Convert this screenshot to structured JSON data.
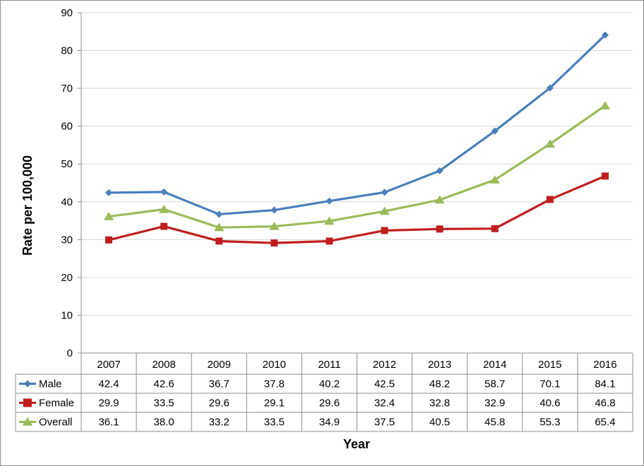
{
  "chart_data": {
    "type": "line",
    "title": "",
    "xlabel": "Year",
    "ylabel": "Rate per 100,000",
    "ylim": [
      0,
      90
    ],
    "yticks": [
      0,
      10,
      20,
      30,
      40,
      50,
      60,
      70,
      80,
      90
    ],
    "grid": true,
    "legend": "data-table-left",
    "categories": [
      "2007",
      "2008",
      "2009",
      "2010",
      "2011",
      "2012",
      "2013",
      "2014",
      "2015",
      "2016"
    ],
    "series": [
      {
        "name": "Male",
        "color": "#4a7ebb",
        "marker": "diamond",
        "values": [
          42.4,
          42.6,
          36.7,
          37.8,
          40.2,
          42.5,
          48.2,
          58.7,
          70.1,
          84.1
        ],
        "labels": [
          "42.4",
          "42.6",
          "36.7",
          "37.8",
          "40.2",
          "42.5",
          "48.2",
          "58.7",
          "70.1",
          "84.1"
        ]
      },
      {
        "name": "Female",
        "color": "#be1e1e",
        "marker": "square",
        "values": [
          29.9,
          33.5,
          29.6,
          29.1,
          29.6,
          32.4,
          32.8,
          32.9,
          40.6,
          46.8
        ],
        "labels": [
          "29.9",
          "33.5",
          "29.6",
          "29.1",
          "29.6",
          "32.4",
          "32.8",
          "32.9",
          "40.6",
          "46.8"
        ]
      },
      {
        "name": "Overall",
        "color": "#9bbb59",
        "marker": "triangle",
        "values": [
          36.1,
          38.0,
          33.2,
          33.5,
          34.9,
          37.5,
          40.5,
          45.8,
          55.3,
          65.4
        ],
        "labels": [
          "36.1",
          "38.0",
          "33.2",
          "33.5",
          "34.9",
          "37.5",
          "40.5",
          "45.8",
          "55.3",
          "65.4"
        ]
      }
    ]
  }
}
